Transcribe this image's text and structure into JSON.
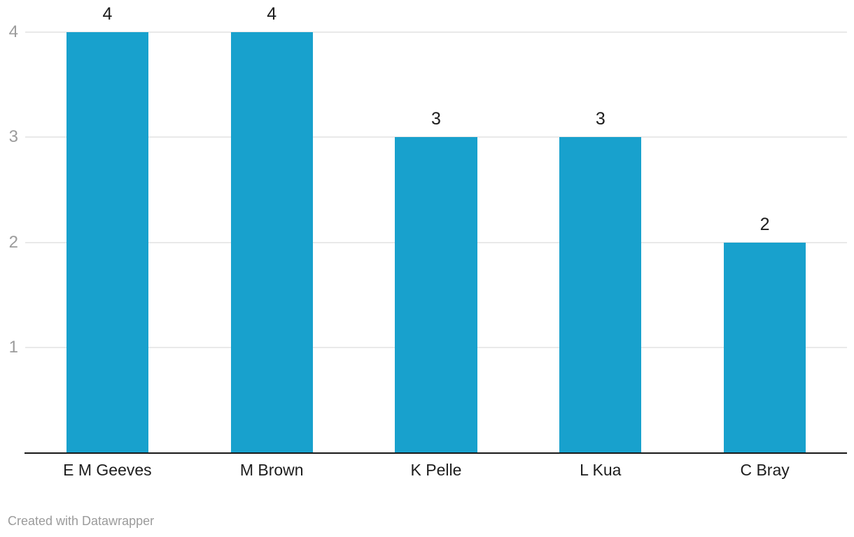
{
  "chart_data": {
    "type": "bar",
    "title": "",
    "xlabel": "",
    "ylabel": "",
    "categories": [
      "E M Geeves",
      "M Brown",
      "K Pelle",
      "L Kua",
      "C Bray"
    ],
    "values": [
      4,
      4,
      3,
      3,
      2
    ],
    "value_labels": [
      "4",
      "4",
      "3",
      "3",
      "2"
    ],
    "yticks": [
      "1",
      "2",
      "3",
      "4"
    ],
    "ytick_values": [
      1,
      2,
      3,
      4
    ],
    "ylim": [
      0,
      4
    ],
    "grid": "horizontal-only",
    "legend": "none",
    "colors": {
      "bar": "#18a1cd",
      "grid": "#e9e9e9",
      "axis_line": "#181818",
      "tick_label": "#9b9b9b",
      "value_label": "#1d1d1d",
      "category_label": "#1d1d1d",
      "credit": "#9b9b9b",
      "background": "#ffffff"
    }
  },
  "footer": {
    "credit": "Created with Datawrapper"
  }
}
